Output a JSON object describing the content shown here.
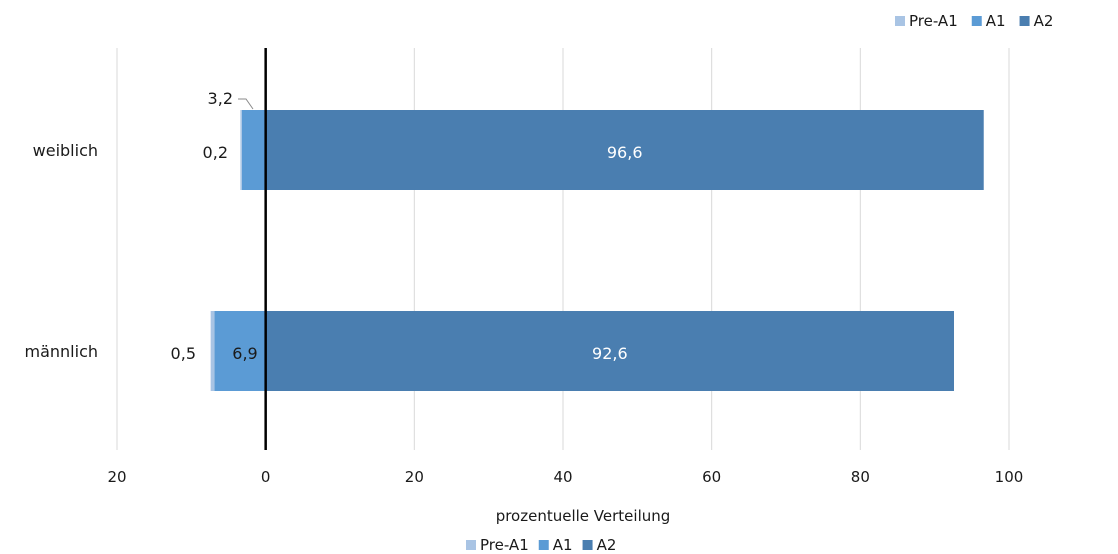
{
  "chart_data": {
    "type": "bar",
    "orientation": "horizontal",
    "stacked": true,
    "diverging": true,
    "categories": [
      "weiblich",
      "männlich"
    ],
    "series": [
      {
        "name": "Pre-A1",
        "values": [
          0.2,
          0.5
        ],
        "color": "#a9c4e4",
        "side": "negative"
      },
      {
        "name": "A1",
        "values": [
          3.2,
          6.9
        ],
        "color": "#5b9bd5",
        "side": "negative"
      },
      {
        "name": "A2",
        "values": [
          96.6,
          92.6
        ],
        "color": "#4a7eb0",
        "side": "positive"
      }
    ],
    "data_labels": [
      {
        "category": "weiblich",
        "series": "A1",
        "text": "3,2"
      },
      {
        "category": "weiblich",
        "series": "Pre-A1",
        "text": "0,2"
      },
      {
        "category": "weiblich",
        "series": "A2",
        "text": "96,6"
      },
      {
        "category": "männlich",
        "series": "Pre-A1",
        "text": "0,5"
      },
      {
        "category": "männlich",
        "series": "A1",
        "text": "6,9"
      },
      {
        "category": "männlich",
        "series": "A2",
        "text": "92,6"
      }
    ],
    "xlim": [
      -20,
      100
    ],
    "xticks": [
      -20,
      0,
      20,
      40,
      60,
      80,
      100
    ],
    "xtick_labels": [
      "20",
      "0",
      "20",
      "40",
      "60",
      "80",
      "100"
    ],
    "xlabel": "prozentuelle Verteilung",
    "grid": "vertical",
    "legend_positions": [
      "top-right",
      "bottom-center"
    ],
    "legend_labels": [
      "Pre-A1",
      "A1",
      "A2"
    ]
  }
}
